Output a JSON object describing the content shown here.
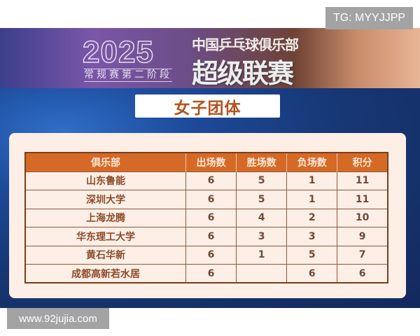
{
  "watermark_top": "TG: MYYJJPP",
  "watermark_bottom": "www.92jujia.com",
  "banner": {
    "year": "2025",
    "stage": "常规赛第二阶段",
    "org": "中国乒乓球俱乐部",
    "league": "超级联赛"
  },
  "title": "女子团体",
  "table": {
    "headers": [
      "俱乐部",
      "出场数",
      "胜场数",
      "负场数",
      "积分"
    ],
    "rows": [
      [
        "山东鲁能",
        "6",
        "5",
        "1",
        "11"
      ],
      [
        "深圳大学",
        "6",
        "5",
        "1",
        "11"
      ],
      [
        "上海龙腾",
        "6",
        "4",
        "2",
        "10"
      ],
      [
        "华东理工大学",
        "6",
        "3",
        "3",
        "9"
      ],
      [
        "黄石华新",
        "6",
        "1",
        "5",
        "7"
      ],
      [
        "成都高新若水居",
        "6",
        "",
        "6",
        "6"
      ]
    ]
  },
  "colors": {
    "header": "#d56a26",
    "title_text": "#b3541f",
    "panel": "#fdeee6",
    "background": "#173775"
  }
}
